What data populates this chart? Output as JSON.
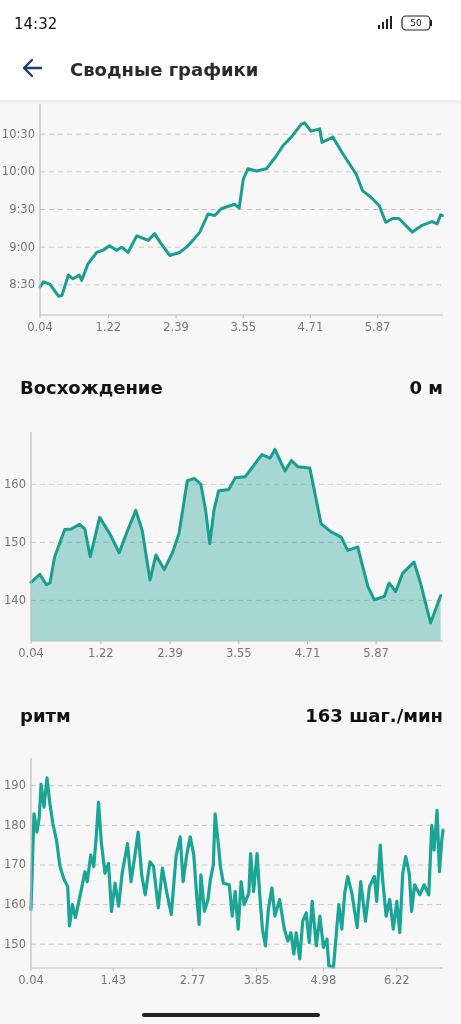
{
  "chart_data": [
    {
      "type": "line",
      "title": "Сводные графики",
      "annotations": [
        "14:32",
        "50"
      ],
      "xlim": [
        0.04,
        7.0
      ],
      "xticks": [
        0.04,
        1.22,
        2.39,
        3.55,
        4.71,
        5.87
      ],
      "ylim": [
        8.1,
        10.9
      ],
      "yticks": [
        {
          "value": 8.5,
          "label": "8:30"
        },
        {
          "value": 9,
          "label": "9:00"
        },
        {
          "value": 9.5,
          "label": "9:30"
        },
        {
          "value": 10,
          "label": "10:00"
        },
        {
          "value": 10.5,
          "label": "10:30"
        }
      ],
      "grid": "y",
      "line_style": "solid",
      "series": [
        {
          "color": "#1a9e8f",
          "x": [
            0.04,
            0.1,
            0.21,
            0.36,
            0.42,
            0.53,
            0.61,
            0.72,
            0.76,
            0.87,
            1.02,
            1.13,
            1.24,
            1.36,
            1.45,
            1.56,
            1.71,
            1.91,
            2.02,
            2.11,
            2.28,
            2.45,
            2.57,
            2.68,
            2.8,
            2.94,
            3.06,
            3.17,
            3.4,
            3.48,
            3.55,
            3.63,
            3.78,
            3.95,
            4.12,
            4.24,
            4.38,
            4.55,
            4.61,
            4.72,
            4.87,
            4.91,
            5.1,
            5.27,
            5.5,
            5.61,
            5.76,
            5.9,
            6.01,
            6.13,
            6.24,
            6.47,
            6.64,
            6.81,
            6.9,
            6.96,
            6.99
          ],
          "values": [
            8.47,
            8.54,
            8.51,
            8.35,
            8.36,
            8.63,
            8.58,
            8.63,
            8.56,
            8.78,
            8.93,
            8.96,
            9.02,
            8.96,
            9.0,
            8.93,
            9.15,
            9.09,
            9.18,
            9.07,
            8.89,
            8.93,
            9.0,
            9.09,
            9.2,
            9.44,
            9.42,
            9.51,
            9.57,
            9.52,
            9.9,
            10.04,
            10.01,
            10.04,
            10.21,
            10.35,
            10.46,
            10.63,
            10.65,
            10.54,
            10.57,
            10.39,
            10.46,
            10.24,
            9.97,
            9.75,
            9.66,
            9.55,
            9.33,
            9.38,
            9.38,
            9.2,
            9.29,
            9.34,
            9.31,
            9.43,
            9.42
          ]
        }
      ]
    },
    {
      "type": "area",
      "title": "Восхождение",
      "annotations": [
        "0 м"
      ],
      "xlim": [
        0.04,
        7.0
      ],
      "xticks": [
        0.04,
        1.22,
        2.39,
        3.55,
        4.71,
        5.87
      ],
      "ylim": [
        133,
        169
      ],
      "yticks": [
        140,
        150,
        160
      ],
      "grid": "y",
      "line_style": "solid",
      "series": [
        {
          "color": "#1a9e8f",
          "x": [
            0.04,
            0.19,
            0.3,
            0.36,
            0.44,
            0.61,
            0.72,
            0.86,
            0.95,
            1.04,
            1.2,
            1.37,
            1.53,
            1.67,
            1.81,
            1.92,
            2.05,
            2.15,
            2.29,
            2.43,
            2.54,
            2.68,
            2.8,
            2.91,
            2.99,
            3.06,
            3.13,
            3.21,
            3.38,
            3.49,
            3.66,
            3.77,
            3.94,
            4.08,
            4.16,
            4.33,
            4.44,
            4.55,
            4.75,
            4.94,
            5.11,
            5.28,
            5.39,
            5.56,
            5.73,
            5.84,
            6.01,
            6.09,
            6.2,
            6.32,
            6.51,
            6.62,
            6.79,
            6.96
          ],
          "values": [
            143.1,
            144.5,
            142.7,
            143.0,
            147.5,
            152.2,
            152.3,
            153.1,
            152.3,
            147.5,
            154.3,
            151.5,
            148.2,
            152.0,
            155.5,
            152.0,
            143.5,
            147.8,
            145.3,
            148.2,
            151.5,
            160.6,
            161.0,
            160.0,
            155.5,
            149.8,
            155.5,
            158.9,
            159.1,
            161.1,
            161.3,
            162.8,
            165.1,
            164.5,
            166.0,
            162.3,
            164.1,
            163.0,
            162.8,
            153.2,
            151.8,
            150.9,
            148.6,
            149.2,
            142.4,
            140.1,
            140.7,
            143.0,
            141.5,
            144.7,
            146.6,
            143.0,
            136.1,
            140.8
          ]
        }
      ]
    },
    {
      "type": "line",
      "title": "ритм",
      "annotations": [
        "163 шаг./мин"
      ],
      "xlim": [
        0.04,
        7.0
      ],
      "xticks": [
        0.04,
        1.43,
        2.77,
        3.85,
        4.98,
        6.22
      ],
      "ylim": [
        144,
        197
      ],
      "yticks": [
        150,
        160,
        170,
        180,
        190
      ],
      "grid": "y",
      "line_style": "solid",
      "series": [
        {
          "color": "#1aa596",
          "x": [
            0.04,
            0.09,
            0.14,
            0.18,
            0.21,
            0.26,
            0.31,
            0.36,
            0.41,
            0.47,
            0.53,
            0.6,
            0.66,
            0.69,
            0.74,
            0.79,
            0.89,
            0.95,
            0.99,
            1.05,
            1.1,
            1.14,
            1.18,
            1.23,
            1.29,
            1.35,
            1.4,
            1.46,
            1.52,
            1.58,
            1.67,
            1.73,
            1.78,
            1.85,
            1.91,
            1.97,
            2.05,
            2.11,
            2.19,
            2.26,
            2.33,
            2.41,
            2.49,
            2.56,
            2.61,
            2.67,
            2.73,
            2.79,
            2.84,
            2.88,
            2.91,
            2.97,
            3.03,
            3.07,
            3.12,
            3.15,
            3.21,
            3.24,
            3.29,
            3.39,
            3.44,
            3.49,
            3.54,
            3.59,
            3.64,
            3.72,
            3.75,
            3.8,
            3.86,
            3.9,
            3.95,
            4.0,
            4.05,
            4.11,
            4.16,
            4.24,
            4.32,
            4.38,
            4.43,
            4.48,
            4.52,
            4.58,
            4.63,
            4.69,
            4.74,
            4.79,
            4.86,
            4.92,
            4.98,
            5.04,
            5.07,
            5.15,
            5.19,
            5.24,
            5.29,
            5.34,
            5.39,
            5.46,
            5.55,
            5.61,
            5.69,
            5.76,
            5.84,
            5.88,
            5.94,
            5.98,
            6.04,
            6.1,
            6.16,
            6.22,
            6.27,
            6.32,
            6.37,
            6.43,
            6.47,
            6.52,
            6.61,
            6.68,
            6.76,
            6.81,
            6.85,
            6.9,
            6.94,
            6.98,
            7.0
          ],
          "values": [
            158.8,
            182.9,
            178.3,
            182.1,
            190.4,
            184.6,
            192,
            185.4,
            180.4,
            176.3,
            169.6,
            166.3,
            164.6,
            154.6,
            160,
            156.7,
            163.8,
            168.3,
            165.8,
            172.5,
            169.6,
            176.7,
            185.8,
            175.4,
            167.9,
            170.4,
            158.3,
            165.4,
            159.6,
            167.9,
            175.4,
            165.8,
            170.8,
            178.3,
            167.5,
            162.5,
            170.8,
            169.6,
            159.2,
            169.2,
            163.3,
            157.5,
            172.1,
            177.1,
            165.8,
            172.5,
            177.1,
            172.5,
            162.1,
            155,
            167.5,
            158.3,
            161.3,
            166.3,
            170,
            182.9,
            174.6,
            169.6,
            165.4,
            165,
            157.1,
            163.3,
            153.8,
            165.8,
            160,
            162.9,
            172.9,
            163.3,
            172.9,
            163.3,
            153.8,
            149.6,
            158.8,
            164.2,
            157.1,
            161.3,
            153.8,
            150.8,
            152.9,
            147.5,
            152.9,
            146.3,
            155.8,
            157.9,
            150.4,
            160.8,
            149.6,
            157.1,
            149.2,
            151.3,
            144.6,
            144.2,
            151.3,
            160,
            153.8,
            162.9,
            167.1,
            162.9,
            154.2,
            165.8,
            155.8,
            164.6,
            167.1,
            160.8,
            175,
            166.3,
            157.1,
            161.3,
            153.8,
            160.8,
            152.9,
            167.9,
            172.1,
            167.9,
            158.3,
            165,
            162.5,
            165,
            162.5,
            180,
            173.8,
            183.8,
            168.3,
            176.3,
            178.8
          ]
        }
      ]
    }
  ]
}
